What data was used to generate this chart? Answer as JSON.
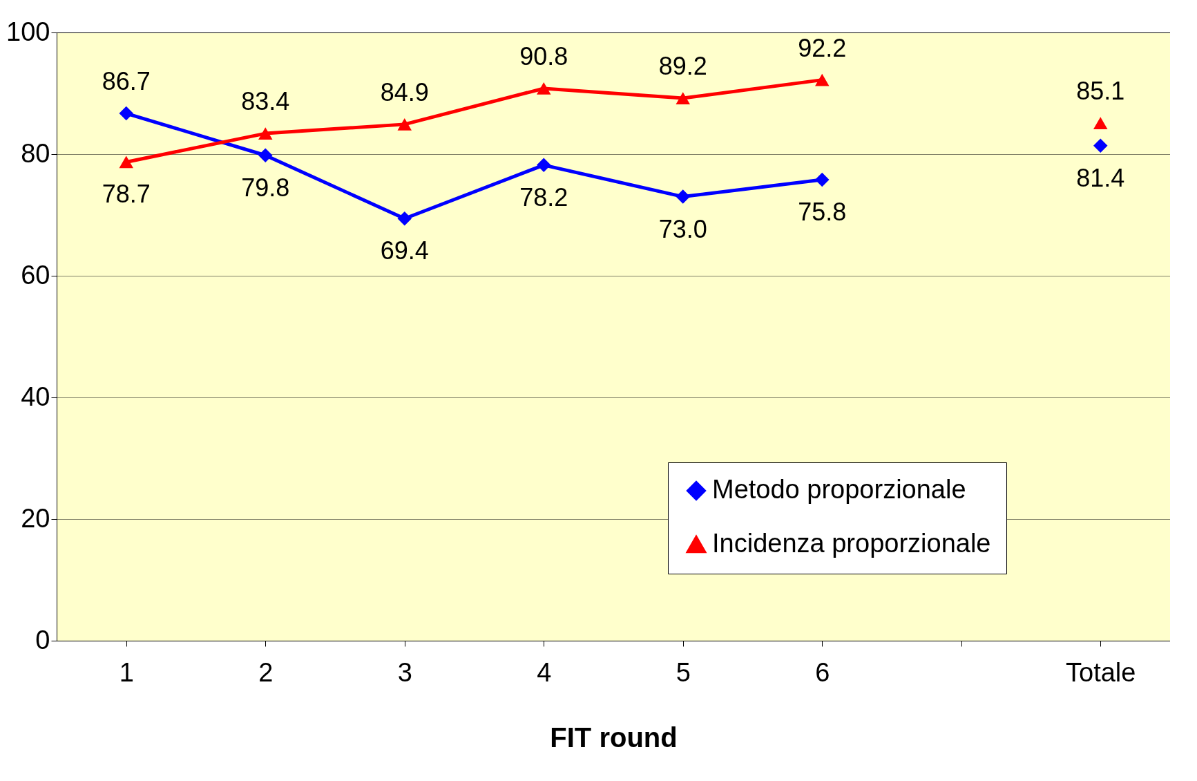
{
  "chart_data": {
    "type": "line",
    "xlabel": "FIT round",
    "categories": [
      "1",
      "2",
      "3",
      "4",
      "5",
      "6",
      null,
      "Totale"
    ],
    "series": [
      {
        "name": "Metodo proporzionale",
        "color": "#0000ff",
        "marker": "diamond",
        "values": [
          86.7,
          79.8,
          69.4,
          78.2,
          73.0,
          75.8,
          null,
          81.4
        ],
        "value_labels": [
          "86.7",
          "79.8",
          "69.4",
          "78.2",
          "73.0",
          "75.8",
          null,
          "81.4"
        ]
      },
      {
        "name": "Incidenza proporzionale",
        "color": "#ff0000",
        "marker": "triangle",
        "values": [
          78.7,
          83.4,
          84.9,
          90.8,
          89.2,
          92.2,
          null,
          85.1
        ],
        "value_labels": [
          "78.7",
          "83.4",
          "84.9",
          "90.8",
          "89.2",
          "92.2",
          null,
          "85.1"
        ]
      }
    ],
    "ylim": [
      0,
      100
    ],
    "yticks": [
      0,
      20,
      40,
      60,
      80,
      100
    ],
    "grid": "y",
    "legend": "bottom right"
  }
}
